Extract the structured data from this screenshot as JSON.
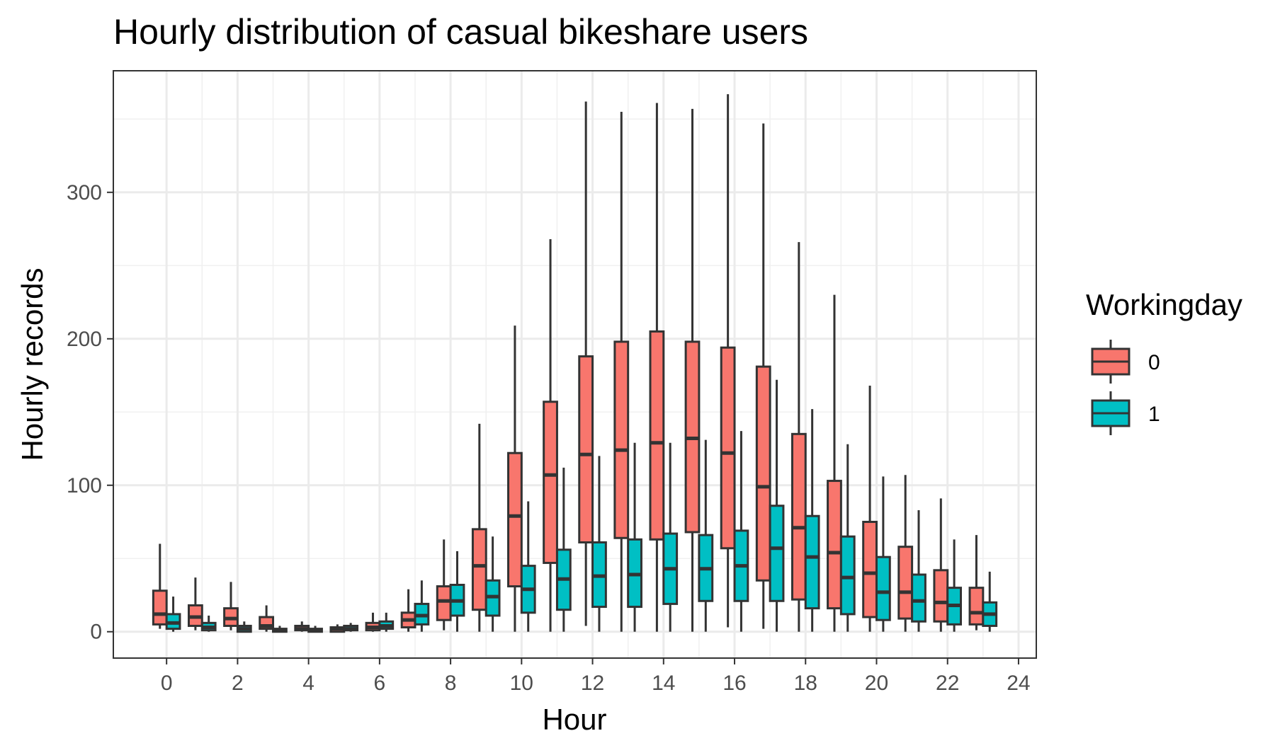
{
  "chart_data": {
    "type": "boxplot",
    "title": "Hourly distribution of casual bikeshare users",
    "xlabel": "Hour",
    "ylabel": "Hourly records",
    "xlim": [
      -1.5,
      24.5
    ],
    "ylim": [
      -18,
      383
    ],
    "x_ticks": [
      0,
      2,
      4,
      6,
      8,
      10,
      12,
      14,
      16,
      18,
      20,
      22,
      24
    ],
    "y_ticks": [
      0,
      100,
      200,
      300
    ],
    "grid": true,
    "legend": {
      "title": "Workingday",
      "position": "right"
    },
    "series": [
      {
        "name": "0",
        "color": "#F8766D",
        "boxes": [
          {
            "hour": 0,
            "min": 2,
            "q1": 5,
            "median": 12,
            "q3": 28,
            "max": 60
          },
          {
            "hour": 1,
            "min": 1,
            "q1": 4,
            "median": 10,
            "q3": 18,
            "max": 37
          },
          {
            "hour": 2,
            "min": 1,
            "q1": 4,
            "median": 9,
            "q3": 16,
            "max": 34
          },
          {
            "hour": 3,
            "min": 0,
            "q1": 2,
            "median": 4,
            "q3": 10,
            "max": 18
          },
          {
            "hour": 4,
            "min": 0,
            "q1": 1,
            "median": 2,
            "q3": 4,
            "max": 7
          },
          {
            "hour": 5,
            "min": 0,
            "q1": 0,
            "median": 2,
            "q3": 3,
            "max": 5
          },
          {
            "hour": 6,
            "min": 0,
            "q1": 1,
            "median": 3,
            "q3": 6,
            "max": 13
          },
          {
            "hour": 7,
            "min": 0,
            "q1": 3,
            "median": 8,
            "q3": 13,
            "max": 29
          },
          {
            "hour": 8,
            "min": 1,
            "q1": 8,
            "median": 21,
            "q3": 31,
            "max": 63
          },
          {
            "hour": 9,
            "min": 0,
            "q1": 15,
            "median": 45,
            "q3": 70,
            "max": 142
          },
          {
            "hour": 10,
            "min": 0,
            "q1": 31,
            "median": 79,
            "q3": 122,
            "max": 209
          },
          {
            "hour": 11,
            "min": 0,
            "q1": 47,
            "median": 107,
            "q3": 157,
            "max": 268
          },
          {
            "hour": 12,
            "min": 4,
            "q1": 61,
            "median": 121,
            "q3": 188,
            "max": 362
          },
          {
            "hour": 13,
            "min": 0,
            "q1": 64,
            "median": 124,
            "q3": 198,
            "max": 355
          },
          {
            "hour": 14,
            "min": 0,
            "q1": 63,
            "median": 129,
            "q3": 205,
            "max": 361
          },
          {
            "hour": 15,
            "min": 0,
            "q1": 68,
            "median": 132,
            "q3": 198,
            "max": 357
          },
          {
            "hour": 16,
            "min": 3,
            "q1": 57,
            "median": 122,
            "q3": 194,
            "max": 367
          },
          {
            "hour": 17,
            "min": 2,
            "q1": 35,
            "median": 99,
            "q3": 181,
            "max": 347
          },
          {
            "hour": 18,
            "min": 0,
            "q1": 22,
            "median": 71,
            "q3": 135,
            "max": 266
          },
          {
            "hour": 19,
            "min": 0,
            "q1": 16,
            "median": 54,
            "q3": 103,
            "max": 230
          },
          {
            "hour": 20,
            "min": 0,
            "q1": 10,
            "median": 40,
            "q3": 75,
            "max": 168
          },
          {
            "hour": 21,
            "min": 0,
            "q1": 9,
            "median": 27,
            "q3": 58,
            "max": 107
          },
          {
            "hour": 22,
            "min": 0,
            "q1": 7,
            "median": 20,
            "q3": 42,
            "max": 91
          },
          {
            "hour": 23,
            "min": 1,
            "q1": 5,
            "median": 13,
            "q3": 30,
            "max": 66
          }
        ]
      },
      {
        "name": "1",
        "color": "#00BFC4",
        "boxes": [
          {
            "hour": 0,
            "min": 0,
            "q1": 2,
            "median": 6,
            "q3": 12,
            "max": 24
          },
          {
            "hour": 1,
            "min": 0,
            "q1": 1,
            "median": 3,
            "q3": 6,
            "max": 11
          },
          {
            "hour": 2,
            "min": 0,
            "q1": 0,
            "median": 2,
            "q3": 4,
            "max": 7
          },
          {
            "hour": 3,
            "min": 0,
            "q1": 0,
            "median": 1,
            "q3": 2,
            "max": 4
          },
          {
            "hour": 4,
            "min": 0,
            "q1": 0,
            "median": 1,
            "q3": 2,
            "max": 4
          },
          {
            "hour": 5,
            "min": 0,
            "q1": 1,
            "median": 2,
            "q3": 4,
            "max": 6
          },
          {
            "hour": 6,
            "min": 0,
            "q1": 2,
            "median": 4,
            "q3": 7,
            "max": 13
          },
          {
            "hour": 7,
            "min": 0,
            "q1": 5,
            "median": 11,
            "q3": 19,
            "max": 35
          },
          {
            "hour": 8,
            "min": 0,
            "q1": 11,
            "median": 21,
            "q3": 32,
            "max": 55
          },
          {
            "hour": 9,
            "min": 0,
            "q1": 11,
            "median": 24,
            "q3": 35,
            "max": 65
          },
          {
            "hour": 10,
            "min": 0,
            "q1": 13,
            "median": 29,
            "q3": 45,
            "max": 89
          },
          {
            "hour": 11,
            "min": 0,
            "q1": 15,
            "median": 36,
            "q3": 56,
            "max": 112
          },
          {
            "hour": 12,
            "min": 0,
            "q1": 17,
            "median": 38,
            "q3": 61,
            "max": 120
          },
          {
            "hour": 13,
            "min": 0,
            "q1": 17,
            "median": 39,
            "q3": 63,
            "max": 129
          },
          {
            "hour": 14,
            "min": 0,
            "q1": 19,
            "median": 43,
            "q3": 67,
            "max": 129
          },
          {
            "hour": 15,
            "min": 0,
            "q1": 21,
            "median": 43,
            "q3": 66,
            "max": 131
          },
          {
            "hour": 16,
            "min": 0,
            "q1": 21,
            "median": 45,
            "q3": 69,
            "max": 137
          },
          {
            "hour": 17,
            "min": 0,
            "q1": 21,
            "median": 57,
            "q3": 86,
            "max": 172
          },
          {
            "hour": 18,
            "min": 0,
            "q1": 16,
            "median": 51,
            "q3": 79,
            "max": 152
          },
          {
            "hour": 19,
            "min": 0,
            "q1": 12,
            "median": 37,
            "q3": 65,
            "max": 128
          },
          {
            "hour": 20,
            "min": 0,
            "q1": 8,
            "median": 27,
            "q3": 51,
            "max": 106
          },
          {
            "hour": 21,
            "min": 0,
            "q1": 7,
            "median": 21,
            "q3": 39,
            "max": 83
          },
          {
            "hour": 22,
            "min": 0,
            "q1": 5,
            "median": 18,
            "q3": 30,
            "max": 63
          },
          {
            "hour": 23,
            "min": 0,
            "q1": 4,
            "median": 12,
            "q3": 20,
            "max": 41
          }
        ]
      }
    ]
  }
}
